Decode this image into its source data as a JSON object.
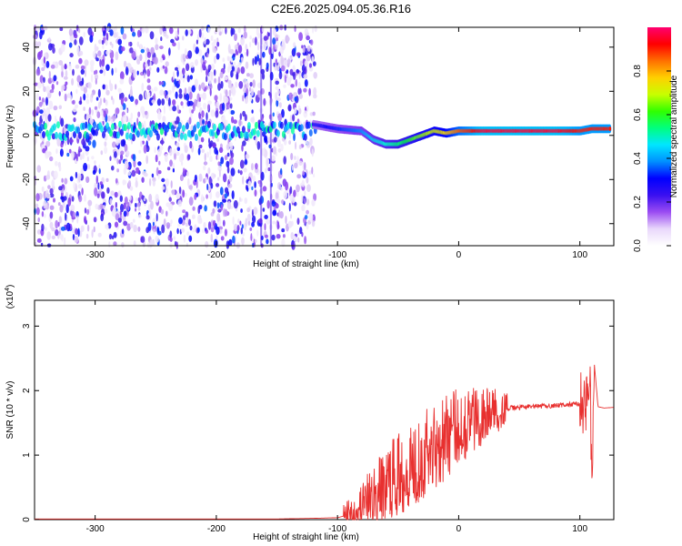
{
  "title": "C2E6.2025.094.05.36.R16",
  "chart_data": [
    {
      "type": "heatmap",
      "xlabel": "Height of straight line (km)",
      "ylabel": "Frequency (Hz)",
      "xlim": [
        -350,
        128
      ],
      "ylim": [
        -50,
        49
      ],
      "xticks": [
        -300,
        -200,
        -100,
        0,
        100
      ],
      "yticks": [
        -40,
        -20,
        0,
        20,
        40
      ],
      "colorbar": {
        "label": "Normalized spectral amplitude",
        "range": [
          0,
          1
        ],
        "ticks": [
          "0.0",
          "0.2",
          "0.4",
          "0.6",
          "0.8"
        ],
        "colors": [
          "#ffffff",
          "#dcc8f6",
          "#8a3ef0",
          "#3a1ee8",
          "#0000ff",
          "#00b4ff",
          "#00ffd2",
          "#00ff3c",
          "#b4ff00",
          "#ffdc00",
          "#ff7800",
          "#ff0000",
          "#ff0078"
        ]
      },
      "ridge": {
        "x": [
          -120,
          -100,
          -80,
          -70,
          -60,
          -50,
          -40,
          -30,
          -20,
          -10,
          0,
          20,
          40,
          60,
          80,
          100,
          110,
          125
        ],
        "freq": [
          5,
          3,
          2,
          -2,
          -4,
          -4,
          -2,
          0,
          2,
          1,
          2,
          2,
          2,
          2,
          2,
          2,
          3,
          3
        ],
        "amplitude": [
          0.3,
          0.35,
          0.4,
          0.45,
          0.5,
          0.55,
          0.6,
          0.65,
          0.7,
          0.75,
          0.85,
          0.95,
          0.95,
          0.95,
          0.95,
          0.9,
          0.9,
          0.9
        ]
      }
    },
    {
      "type": "line",
      "xlabel": "Height of straight line (km)",
      "ylabel": "SNR (10 * v/v)",
      "exponent_label": "(x10",
      "exponent_power": "4",
      "exponent_close": ")",
      "xlim": [
        -350,
        128
      ],
      "ylim": [
        0,
        3.4
      ],
      "xticks": [
        -300,
        -200,
        -100,
        0,
        100
      ],
      "yticks": [
        0,
        1,
        2,
        3
      ],
      "series": [
        {
          "color": "#e8302f",
          "x": [
            -350,
            -300,
            -250,
            -200,
            -150,
            -120,
            -100,
            -90,
            -80,
            -70,
            -60,
            -50,
            -40,
            -30,
            -20,
            -10,
            0,
            10,
            20,
            30,
            40,
            50,
            60,
            70,
            80,
            90,
            100,
            105,
            108,
            110,
            112,
            115,
            120,
            128
          ],
          "y": [
            0.01,
            0.01,
            0.01,
            0.01,
            0.01,
            0.02,
            0.03,
            0.08,
            0.2,
            0.35,
            0.55,
            0.7,
            0.85,
            1.0,
            1.15,
            1.3,
            1.45,
            1.55,
            1.62,
            1.68,
            1.72,
            1.74,
            1.75,
            1.76,
            1.77,
            1.78,
            1.8,
            1.85,
            2.3,
            0.6,
            2.4,
            1.75,
            1.73,
            1.74
          ]
        }
      ]
    }
  ]
}
